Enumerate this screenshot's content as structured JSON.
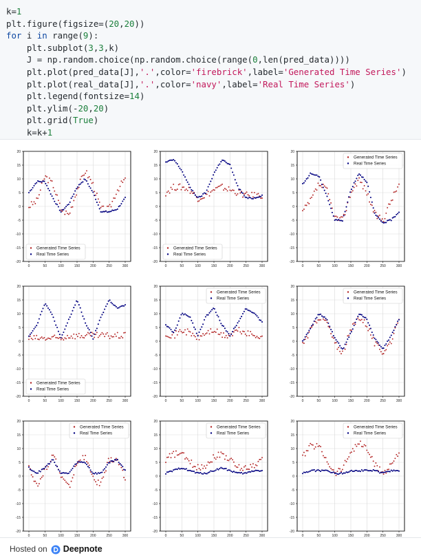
{
  "code_cell": {
    "lines": [
      [
        {
          "t": "k=",
          "c": ""
        },
        {
          "t": "1",
          "c": "num"
        }
      ],
      [
        {
          "t": "plt.figure(figsize=(",
          "c": ""
        },
        {
          "t": "20",
          "c": "num"
        },
        {
          "t": ",",
          "c": ""
        },
        {
          "t": "20",
          "c": "num"
        },
        {
          "t": "))",
          "c": ""
        }
      ],
      [
        {
          "t": "for",
          "c": "kw"
        },
        {
          "t": " i ",
          "c": ""
        },
        {
          "t": "in",
          "c": "kw"
        },
        {
          "t": " range(",
          "c": ""
        },
        {
          "t": "9",
          "c": "num"
        },
        {
          "t": "):",
          "c": ""
        }
      ],
      [
        {
          "t": "    plt.subplot(",
          "c": ""
        },
        {
          "t": "3",
          "c": "num"
        },
        {
          "t": ",",
          "c": ""
        },
        {
          "t": "3",
          "c": "num"
        },
        {
          "t": ",k)",
          "c": ""
        }
      ],
      [
        {
          "t": "    J = np.random.choice(np.random.choice(range(",
          "c": ""
        },
        {
          "t": "0",
          "c": "num"
        },
        {
          "t": ",len(pred_data))))",
          "c": ""
        }
      ],
      [
        {
          "t": "    plt.plot(pred_data[J],",
          "c": ""
        },
        {
          "t": "'.'",
          "c": "str"
        },
        {
          "t": ",color=",
          "c": ""
        },
        {
          "t": "'firebrick'",
          "c": "str"
        },
        {
          "t": ",label=",
          "c": ""
        },
        {
          "t": "'Generated Time Series'",
          "c": "str"
        },
        {
          "t": ")",
          "c": ""
        }
      ],
      [
        {
          "t": "    plt.plot(real_data[J],",
          "c": ""
        },
        {
          "t": "'.'",
          "c": "str"
        },
        {
          "t": ",color=",
          "c": ""
        },
        {
          "t": "'navy'",
          "c": "str"
        },
        {
          "t": ",label=",
          "c": ""
        },
        {
          "t": "'Real Time Series'",
          "c": "str"
        },
        {
          "t": ")",
          "c": ""
        }
      ],
      [
        {
          "t": "    plt.legend(fontsize=",
          "c": ""
        },
        {
          "t": "14",
          "c": "num"
        },
        {
          "t": ")",
          "c": ""
        }
      ],
      [
        {
          "t": "    plt.ylim(-",
          "c": ""
        },
        {
          "t": "20",
          "c": "num"
        },
        {
          "t": ",",
          "c": ""
        },
        {
          "t": "20",
          "c": "num"
        },
        {
          "t": ")",
          "c": ""
        }
      ],
      [
        {
          "t": "    plt.grid(",
          "c": ""
        },
        {
          "t": "True",
          "c": "num"
        },
        {
          "t": ")",
          "c": ""
        }
      ],
      [
        {
          "t": "    k=k+",
          "c": ""
        },
        {
          "t": "1",
          "c": "num"
        }
      ]
    ]
  },
  "footer": {
    "hosted_on": "Hosted on",
    "brand": "Deepnote",
    "logo_icon": "deepnote-logo-icon",
    "logo_color": "#3b82f6"
  },
  "colors": {
    "generated": "#b22222",
    "real": "#000080",
    "keyword": "#0d47a1",
    "number": "#1b7f3b",
    "string": "#c2185b"
  },
  "chart_data": [
    {
      "type": "scatter",
      "ylim": [
        -20,
        20
      ],
      "xlim": [
        0,
        300
      ],
      "yticks": [
        -20,
        -15,
        -10,
        -5,
        0,
        5,
        10,
        15,
        20
      ],
      "xticks": [
        0,
        50,
        100,
        150,
        200,
        250,
        300
      ],
      "grid": true,
      "legend_placement": "lower-left",
      "series": [
        {
          "name": "Generated Time Series",
          "color": "firebrick",
          "x": [
            0,
            25,
            50,
            75,
            100,
            125,
            150,
            175,
            200,
            225,
            250,
            275,
            300
          ],
          "y": [
            0,
            2,
            11,
            8,
            -1,
            -3,
            6,
            13,
            8,
            -1,
            -1,
            6,
            10
          ]
        },
        {
          "name": "Real Time Series",
          "color": "navy",
          "x": [
            0,
            25,
            50,
            75,
            100,
            125,
            150,
            175,
            200,
            225,
            250,
            275,
            300
          ],
          "y": [
            5,
            9,
            9,
            3,
            -2,
            1,
            7,
            10,
            5,
            -2,
            -2,
            -1,
            3
          ]
        }
      ]
    },
    {
      "type": "scatter",
      "ylim": [
        -20,
        20
      ],
      "xlim": [
        0,
        300
      ],
      "yticks": [
        -20,
        -15,
        -10,
        -5,
        0,
        5,
        10,
        15,
        20
      ],
      "xticks": [
        0,
        50,
        100,
        150,
        200,
        250,
        300
      ],
      "grid": true,
      "legend_placement": "lower-left",
      "series": [
        {
          "name": "Generated Time Series",
          "color": "firebrick",
          "x": [
            0,
            25,
            50,
            75,
            100,
            125,
            150,
            175,
            200,
            225,
            250,
            275,
            300
          ],
          "y": [
            5,
            7,
            7,
            6,
            3,
            4,
            6,
            7,
            6,
            5,
            4,
            4,
            4
          ]
        },
        {
          "name": "Real Time Series",
          "color": "navy",
          "x": [
            0,
            25,
            50,
            75,
            100,
            125,
            150,
            175,
            200,
            225,
            250,
            275,
            300
          ],
          "y": [
            16,
            17,
            13,
            7,
            3,
            5,
            12,
            17,
            15,
            7,
            3,
            3,
            4
          ]
        }
      ]
    },
    {
      "type": "scatter",
      "ylim": [
        -20,
        20
      ],
      "xlim": [
        0,
        300
      ],
      "yticks": [
        -20,
        -15,
        -10,
        -5,
        0,
        5,
        10,
        15,
        20
      ],
      "xticks": [
        0,
        50,
        100,
        150,
        200,
        250,
        300
      ],
      "grid": true,
      "legend_placement": "top-right",
      "series": [
        {
          "name": "Generated Time Series",
          "color": "firebrick",
          "x": [
            0,
            25,
            50,
            75,
            100,
            125,
            150,
            175,
            200,
            225,
            250,
            275,
            300
          ],
          "y": [
            -2,
            2,
            8,
            6,
            -4,
            -5,
            5,
            10,
            5,
            -3,
            -5,
            2,
            8
          ]
        },
        {
          "name": "Real Time Series",
          "color": "navy",
          "x": [
            0,
            25,
            50,
            75,
            100,
            125,
            150,
            175,
            200,
            225,
            250,
            275,
            300
          ],
          "y": [
            8,
            12,
            11,
            4,
            -5,
            -5,
            6,
            12,
            9,
            -3,
            -6,
            -5,
            -2
          ]
        }
      ]
    },
    {
      "type": "scatter",
      "ylim": [
        -20,
        20
      ],
      "xlim": [
        0,
        300
      ],
      "yticks": [
        -20,
        -15,
        -10,
        -5,
        0,
        5,
        10,
        15,
        20
      ],
      "xticks": [
        0,
        50,
        100,
        150,
        200,
        250,
        300
      ],
      "grid": true,
      "legend_placement": "lower-left",
      "series": [
        {
          "name": "Generated Time Series",
          "color": "firebrick",
          "x": [
            0,
            25,
            50,
            75,
            100,
            125,
            150,
            175,
            200,
            225,
            250,
            275,
            300
          ],
          "y": [
            1,
            1,
            1,
            1,
            1,
            2,
            2,
            2,
            2,
            2,
            2,
            2,
            2
          ]
        },
        {
          "name": "Real Time Series",
          "color": "navy",
          "x": [
            0,
            25,
            50,
            75,
            100,
            125,
            150,
            175,
            200,
            225,
            250,
            275,
            300
          ],
          "y": [
            2,
            6,
            14,
            9,
            1,
            8,
            15,
            7,
            1,
            9,
            15,
            12,
            13
          ]
        }
      ]
    },
    {
      "type": "scatter",
      "ylim": [
        -20,
        20
      ],
      "xlim": [
        0,
        300
      ],
      "yticks": [
        -20,
        -15,
        -10,
        -5,
        0,
        5,
        10,
        15,
        20
      ],
      "xticks": [
        0,
        50,
        100,
        150,
        200,
        250,
        300
      ],
      "grid": true,
      "legend_placement": "top-right",
      "series": [
        {
          "name": "Generated Time Series",
          "color": "firebrick",
          "x": [
            0,
            25,
            50,
            75,
            100,
            125,
            150,
            175,
            200,
            225,
            250,
            275,
            300
          ],
          "y": [
            3,
            2,
            4,
            3,
            1,
            3,
            4,
            2,
            2,
            4,
            3,
            2,
            2
          ]
        },
        {
          "name": "Real Time Series",
          "color": "navy",
          "x": [
            0,
            25,
            50,
            75,
            100,
            125,
            150,
            175,
            200,
            225,
            250,
            275,
            300
          ],
          "y": [
            6,
            3,
            10,
            9,
            2,
            9,
            12,
            6,
            2,
            7,
            12,
            10,
            7
          ]
        }
      ]
    },
    {
      "type": "scatter",
      "ylim": [
        -20,
        20
      ],
      "xlim": [
        0,
        300
      ],
      "yticks": [
        -20,
        -15,
        -10,
        -5,
        0,
        5,
        10,
        15,
        20
      ],
      "xticks": [
        0,
        50,
        100,
        150,
        200,
        250,
        300
      ],
      "grid": true,
      "legend_placement": "top-right",
      "series": [
        {
          "name": "Generated Time Series",
          "color": "firebrick",
          "x": [
            0,
            25,
            50,
            75,
            100,
            125,
            150,
            175,
            200,
            225,
            250,
            275,
            300
          ],
          "y": [
            -1,
            4,
            9,
            7,
            -1,
            -4,
            4,
            9,
            6,
            -1,
            -4,
            0,
            7
          ]
        },
        {
          "name": "Real Time Series",
          "color": "navy",
          "x": [
            0,
            25,
            50,
            75,
            100,
            125,
            150,
            175,
            200,
            225,
            250,
            275,
            300
          ],
          "y": [
            0,
            5,
            10,
            8,
            1,
            -3,
            3,
            10,
            8,
            1,
            -3,
            2,
            8
          ]
        }
      ]
    },
    {
      "type": "scatter",
      "ylim": [
        -20,
        20
      ],
      "xlim": [
        0,
        300
      ],
      "yticks": [
        -20,
        -15,
        -10,
        -5,
        0,
        5,
        10,
        15,
        20
      ],
      "xticks": [
        0,
        50,
        100,
        150,
        200,
        250,
        300
      ],
      "grid": true,
      "legend_placement": "top-right",
      "series": [
        {
          "name": "Generated Time Series",
          "color": "firebrick",
          "x": [
            0,
            25,
            50,
            75,
            100,
            125,
            150,
            175,
            200,
            225,
            250,
            275,
            300
          ],
          "y": [
            4,
            -4,
            2,
            8,
            0,
            -4,
            5,
            7,
            -1,
            -3,
            6,
            6,
            -1
          ]
        },
        {
          "name": "Real Time Series",
          "color": "navy",
          "x": [
            0,
            25,
            50,
            75,
            100,
            125,
            150,
            175,
            200,
            225,
            250,
            275,
            300
          ],
          "y": [
            3,
            1,
            3,
            6,
            1,
            1,
            5,
            5,
            1,
            1,
            5,
            6,
            2
          ]
        }
      ]
    },
    {
      "type": "scatter",
      "ylim": [
        -20,
        20
      ],
      "xlim": [
        0,
        300
      ],
      "yticks": [
        -20,
        -15,
        -10,
        -5,
        0,
        5,
        10,
        15,
        20
      ],
      "xticks": [
        0,
        50,
        100,
        150,
        200,
        250,
        300
      ],
      "grid": true,
      "legend_placement": "top-right",
      "series": [
        {
          "name": "Generated Time Series",
          "color": "firebrick",
          "x": [
            0,
            25,
            50,
            75,
            100,
            125,
            150,
            175,
            200,
            225,
            250,
            275,
            300
          ],
          "y": [
            6,
            8,
            8,
            5,
            3,
            4,
            7,
            8,
            6,
            3,
            3,
            4,
            6
          ]
        },
        {
          "name": "Real Time Series",
          "color": "navy",
          "x": [
            0,
            25,
            50,
            75,
            100,
            125,
            150,
            175,
            200,
            225,
            250,
            275,
            300
          ],
          "y": [
            1,
            2,
            3,
            2,
            1,
            1,
            2,
            3,
            2,
            1,
            1,
            2,
            2
          ]
        }
      ]
    },
    {
      "type": "scatter",
      "ylim": [
        -20,
        20
      ],
      "xlim": [
        0,
        300
      ],
      "yticks": [
        -20,
        -15,
        -10,
        -5,
        0,
        5,
        10,
        15,
        20
      ],
      "xticks": [
        0,
        50,
        100,
        150,
        200,
        250,
        300
      ],
      "grid": true,
      "legend_placement": "top-right",
      "series": [
        {
          "name": "Generated Time Series",
          "color": "firebrick",
          "x": [
            0,
            25,
            50,
            75,
            100,
            125,
            150,
            175,
            200,
            225,
            250,
            275,
            300
          ],
          "y": [
            7,
            11,
            11,
            6,
            1,
            3,
            9,
            12,
            10,
            4,
            1,
            4,
            9
          ]
        },
        {
          "name": "Real Time Series",
          "color": "navy",
          "x": [
            0,
            25,
            50,
            75,
            100,
            125,
            150,
            175,
            200,
            225,
            250,
            275,
            300
          ],
          "y": [
            1,
            2,
            2,
            2,
            1,
            1,
            2,
            2,
            2,
            2,
            1,
            2,
            2
          ]
        }
      ]
    }
  ]
}
